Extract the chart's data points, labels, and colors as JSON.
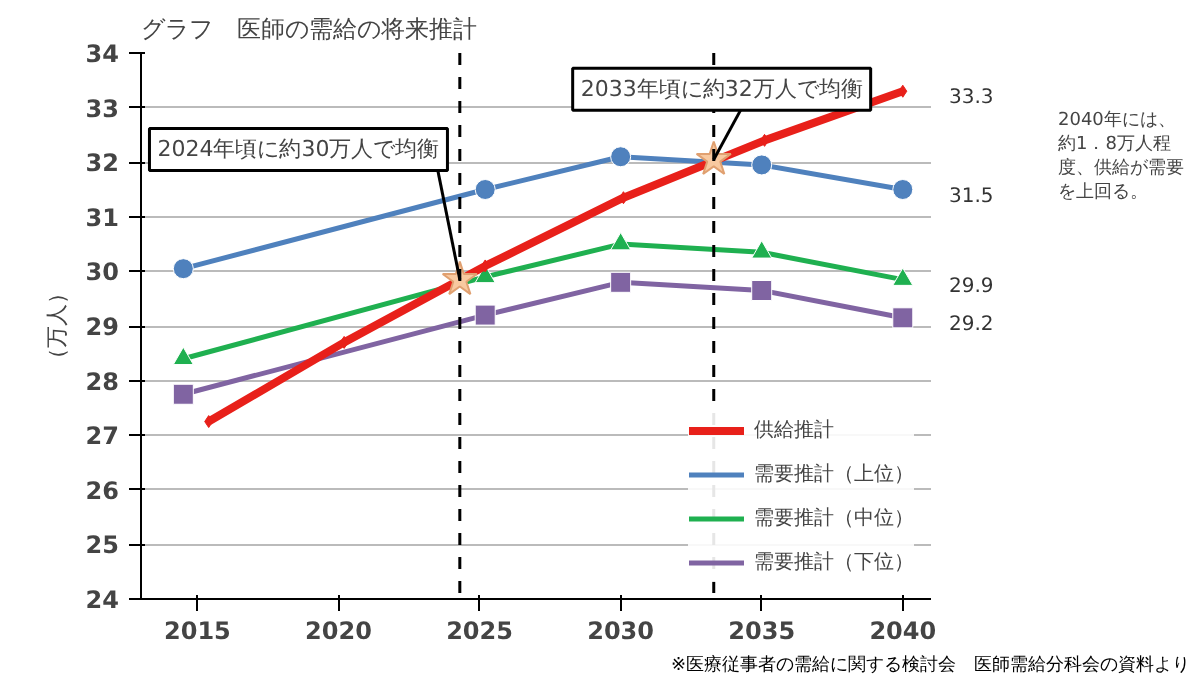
{
  "chart_data": {
    "type": "line",
    "title": "グラフ　医師の需給の将来推計",
    "ylabel": "（万人）",
    "xlim": [
      2013,
      2041
    ],
    "xticks": [
      2015,
      2020,
      2025,
      2030,
      2035,
      2040
    ],
    "ylim": [
      24,
      34
    ],
    "yticks": [
      24,
      25,
      26,
      27,
      28,
      29,
      30,
      31,
      32,
      33,
      34
    ],
    "grid": "y",
    "legend": "bottom right",
    "line_style": "solid",
    "series": [
      {
        "name": "供給推計",
        "color": "#e8201a",
        "marker": "diamond",
        "x": [
          2015.4,
          2020.2,
          2025.2,
          2030.1,
          2035.1,
          2040
        ],
        "values": [
          27.25,
          28.7,
          30.1,
          31.35,
          32.4,
          33.3
        ]
      },
      {
        "name": "需要推計（上位）",
        "color": "#4f81bd",
        "marker": "circle",
        "x": [
          2014.5,
          2025.2,
          2030,
          2035,
          2040
        ],
        "values": [
          30.05,
          31.5,
          32.1,
          31.95,
          31.5
        ]
      },
      {
        "name": "需要推計（中位）",
        "color": "#1fb050",
        "marker": "triangle",
        "x": [
          2014.5,
          2025.2,
          2030,
          2035,
          2040
        ],
        "values": [
          28.4,
          29.9,
          30.5,
          30.35,
          29.85
        ]
      },
      {
        "name": "需要推計（下位）",
        "color": "#8064a2",
        "marker": "square",
        "x": [
          2014.5,
          2025.2,
          2030,
          2035,
          2040
        ],
        "values": [
          27.75,
          29.2,
          29.8,
          29.65,
          29.15
        ]
      }
    ],
    "ref_lines": [
      {
        "axis": "x",
        "value": 2024.3,
        "label": null,
        "color": "#000000",
        "line_style": "dashed"
      },
      {
        "axis": "x",
        "value": 2033.3,
        "label": null,
        "color": "#000000",
        "line_style": "dashed"
      }
    ],
    "annotations": [
      {
        "text": "2024年頃に約30万人で均衡",
        "x": 2024.3,
        "y": 29.85
      },
      {
        "text": "2033年頃に約32万人で均衡",
        "x": 2033.3,
        "y": 32.05
      },
      {
        "text": "33.3",
        "x": 2040,
        "y": 33.3
      },
      {
        "text": "31.5",
        "x": 2040,
        "y": 31.5
      },
      {
        "text": "29.9",
        "x": 2040,
        "y": 29.85
      },
      {
        "text": "29.2",
        "x": 2040,
        "y": 29.15
      },
      "2040年には、約1．8万人程度、供給が需要を上回る。",
      "※医療従事者の需給に関する検討会　医師需給分科会の資料より"
    ]
  }
}
